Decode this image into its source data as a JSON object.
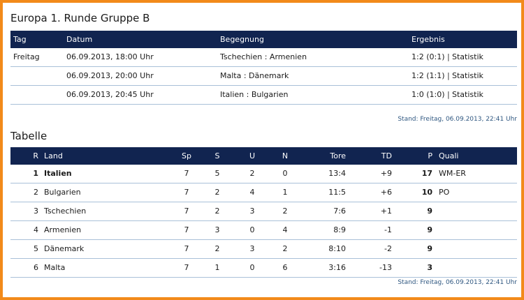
{
  "group_title": "Europa 1. Runde Gruppe B",
  "matches_header": {
    "tag": "Tag",
    "datum": "Datum",
    "begegnung": "Begegnung",
    "ergebnis": "Ergebnis"
  },
  "matches": [
    {
      "tag": "Freitag",
      "datum": "06.09.2013, 18:00 Uhr",
      "begegnung": "Tschechien : Armenien",
      "ergebnis": "1:2 (0:1)",
      "link": "Statistik"
    },
    {
      "tag": "",
      "datum": "06.09.2013, 20:00 Uhr",
      "begegnung": "Malta : Dänemark",
      "ergebnis": "1:2 (1:1)",
      "link": "Statistik"
    },
    {
      "tag": "",
      "datum": "06.09.2013, 20:45 Uhr",
      "begegnung": "Italien : Bulgarien",
      "ergebnis": "1:0 (1:0)",
      "link": "Statistik"
    }
  ],
  "matches_stand": "Stand: Freitag, 06.09.2013, 22:41 Uhr",
  "table_title": "Tabelle",
  "table_header": {
    "r": "R",
    "land": "Land",
    "sp": "Sp",
    "s": "S",
    "u": "U",
    "n": "N",
    "tore": "Tore",
    "td": "TD",
    "p": "P",
    "quali": "Quali"
  },
  "standings": [
    {
      "r": "1",
      "land": "Italien",
      "sp": "7",
      "s": "5",
      "u": "2",
      "n": "0",
      "tore": "13:4",
      "td": "+9",
      "p": "17",
      "quali": "WM-ER"
    },
    {
      "r": "2",
      "land": "Bulgarien",
      "sp": "7",
      "s": "2",
      "u": "4",
      "n": "1",
      "tore": "11:5",
      "td": "+6",
      "p": "10",
      "quali": "PO"
    },
    {
      "r": "3",
      "land": "Tschechien",
      "sp": "7",
      "s": "2",
      "u": "3",
      "n": "2",
      "tore": "7:6",
      "td": "+1",
      "p": "9",
      "quali": ""
    },
    {
      "r": "4",
      "land": "Armenien",
      "sp": "7",
      "s": "3",
      "u": "0",
      "n": "4",
      "tore": "8:9",
      "td": "-1",
      "p": "9",
      "quali": ""
    },
    {
      "r": "5",
      "land": "Dänemark",
      "sp": "7",
      "s": "2",
      "u": "3",
      "n": "2",
      "tore": "8:10",
      "td": "-2",
      "p": "9",
      "quali": ""
    },
    {
      "r": "6",
      "land": "Malta",
      "sp": "7",
      "s": "1",
      "u": "0",
      "n": "6",
      "tore": "3:16",
      "td": "-13",
      "p": "3",
      "quali": ""
    }
  ],
  "table_stand": "Stand: Freitag, 06.09.2013, 22:41 Uhr",
  "colors": {
    "header_bg": "#112450",
    "frame": "#f28a1a",
    "divider": "#a9c0d8"
  }
}
